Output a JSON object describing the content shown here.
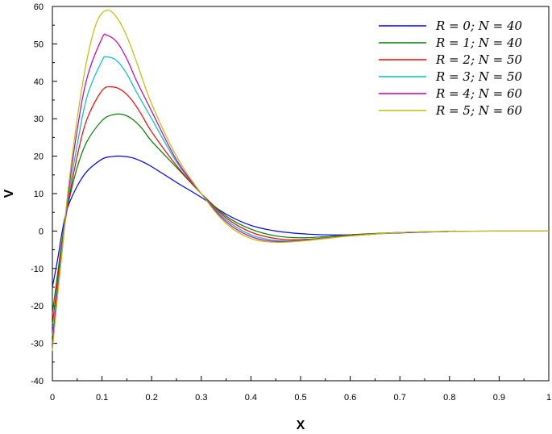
{
  "chart_data": {
    "type": "line",
    "title": "",
    "xlabel": "X",
    "ylabel": "V",
    "xlim": [
      0,
      1
    ],
    "ylim": [
      -40,
      60
    ],
    "xticks": [
      "0",
      "0.1",
      "0.2",
      "0.3",
      "0.4",
      "0.5",
      "0.6",
      "0.7",
      "0.8",
      "0.9",
      "1"
    ],
    "yticks": [
      "-40",
      "-30",
      "-20",
      "-10",
      "0",
      "10",
      "20",
      "30",
      "40",
      "50",
      "60"
    ],
    "grid": false,
    "legend_position": "top-right",
    "series": [
      {
        "name": "R = 0; N = 40",
        "color": "#0000ff",
        "x": [
          0,
          0.01,
          0.02,
          0.03,
          0.05,
          0.07,
          0.1,
          0.12,
          0.14,
          0.16,
          0.18,
          0.2,
          0.25,
          0.3,
          0.35,
          0.4,
          0.45,
          0.5,
          0.55,
          0.6,
          0.7,
          0.8,
          0.81
        ],
        "y": [
          -15,
          -8,
          0,
          6,
          12,
          16,
          19.2,
          19.9,
          20,
          19.6,
          18.6,
          17.2,
          13,
          9,
          4.5,
          1.5,
          0,
          -0.7,
          -1,
          -1,
          -0.5,
          -0.1,
          0
        ]
      },
      {
        "name": "R = 1; N = 40",
        "color": "#008000",
        "x": [
          0,
          0.01,
          0.02,
          0.03,
          0.05,
          0.07,
          0.1,
          0.12,
          0.14,
          0.16,
          0.18,
          0.2,
          0.25,
          0.3,
          0.35,
          0.4,
          0.45,
          0.5,
          0.55,
          0.6,
          0.7,
          0.8,
          0.81
        ],
        "y": [
          -22,
          -12,
          -2,
          6,
          17,
          24,
          29.5,
          31,
          31.2,
          30,
          27.5,
          24,
          17,
          10,
          4,
          0.5,
          -1.3,
          -1.8,
          -1.5,
          -1,
          -0.4,
          -0.1,
          0
        ]
      },
      {
        "name": "R = 2; N = 50",
        "color": "#ff0000",
        "x": [
          0,
          0.01,
          0.02,
          0.03,
          0.05,
          0.07,
          0.1,
          0.12,
          0.14,
          0.16,
          0.18,
          0.2,
          0.25,
          0.3,
          0.35,
          0.4,
          0.45,
          0.5,
          0.55,
          0.6,
          0.7,
          0.8,
          0.81
        ],
        "y": [
          -25,
          -14,
          -3,
          6,
          20,
          30,
          37.5,
          38.5,
          37.6,
          35,
          31,
          26.5,
          17.5,
          10,
          3.5,
          -0.3,
          -2,
          -2.3,
          -1.8,
          -1.2,
          -0.4,
          -0.1,
          0
        ]
      },
      {
        "name": "R = 3; N = 50",
        "color": "#00bfbf",
        "x": [
          0,
          0.01,
          0.02,
          0.03,
          0.05,
          0.07,
          0.1,
          0.11,
          0.13,
          0.15,
          0.17,
          0.2,
          0.25,
          0.3,
          0.35,
          0.4,
          0.45,
          0.5,
          0.55,
          0.6,
          0.7,
          0.8,
          0.81
        ],
        "y": [
          -28,
          -16,
          -4,
          7,
          23,
          36,
          45.5,
          46.5,
          45.5,
          42,
          37,
          30,
          18.5,
          10,
          3,
          -1,
          -2.5,
          -2.5,
          -1.9,
          -1.3,
          -0.4,
          -0.1,
          0
        ]
      },
      {
        "name": "R = 4; N = 60",
        "color": "#bf00bf",
        "x": [
          0,
          0.01,
          0.02,
          0.03,
          0.05,
          0.07,
          0.1,
          0.11,
          0.13,
          0.15,
          0.17,
          0.2,
          0.25,
          0.3,
          0.35,
          0.4,
          0.45,
          0.5,
          0.55,
          0.6,
          0.7,
          0.8,
          0.9,
          1.0
        ],
        "y": [
          -30,
          -17,
          -5,
          8,
          27,
          41,
          51.5,
          52.3,
          50.5,
          46,
          40,
          32,
          19,
          10,
          2.5,
          -1.5,
          -2.8,
          -2.6,
          -2,
          -1.3,
          -0.4,
          -0.1,
          0,
          0
        ]
      },
      {
        "name": "R = 5; N = 60",
        "color": "#bfbf00",
        "x": [
          0,
          0.01,
          0.02,
          0.03,
          0.05,
          0.07,
          0.09,
          0.11,
          0.13,
          0.15,
          0.17,
          0.2,
          0.25,
          0.3,
          0.35,
          0.4,
          0.45,
          0.5,
          0.55,
          0.6,
          0.7,
          0.8,
          0.9,
          1.0
        ],
        "y": [
          -32,
          -18,
          -5,
          9,
          30,
          46,
          56,
          59,
          57,
          52,
          45,
          34,
          20,
          10,
          2,
          -2,
          -3,
          -2.7,
          -2,
          -1.3,
          -0.4,
          -0.1,
          0,
          0
        ]
      }
    ]
  }
}
